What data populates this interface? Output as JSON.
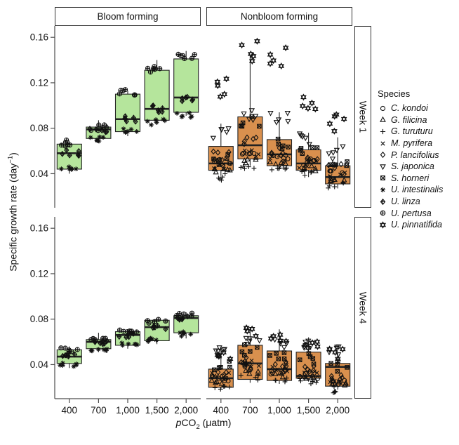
{
  "chart_data": {
    "type": "boxplot",
    "description": "Faceted boxplots with jittered species points: specific growth rate of macroalgae vs pCO2, bloom-forming vs nonbloom-forming, week 1 and week 4",
    "col_facets": [
      "Bloom  forming",
      "Nonbloom forming"
    ],
    "row_facets": [
      "Week 1",
      "Week 4"
    ],
    "x_axis": {
      "label_italic_prefix": "p",
      "label_main": "CO",
      "label_subscript": "2",
      "label_suffix": " (μatm)",
      "tick_labels": [
        "400",
        "700",
        "1,000",
        "1,500",
        "2,000"
      ],
      "values": [
        400,
        700,
        1000,
        1500,
        2000
      ]
    },
    "y_axis": {
      "label_main": "Specific growth rate (day",
      "label_superscript": "−1",
      "label_close": ")",
      "tick_labels": [
        "0.04",
        "0.08",
        "0.12",
        "0.16"
      ],
      "tick_values": [
        0.04,
        0.08,
        0.12,
        0.16
      ],
      "domain": [
        0.01,
        0.17
      ]
    },
    "colors": {
      "bloom_fill": "#b5e59c",
      "nonbloom_fill": "#d9904e",
      "box_stroke": "#222222",
      "point_stroke": "#111111",
      "axis_line": "#4d4d4d"
    },
    "legend": {
      "title": "Species",
      "items": [
        {
          "name": "C. kondoi",
          "symbol": "circle"
        },
        {
          "name": "G. filicina",
          "symbol": "triangle-up"
        },
        {
          "name": "G. turuturu",
          "symbol": "plus"
        },
        {
          "name": "M. pyrifera",
          "symbol": "x"
        },
        {
          "name": "P. lancifolius",
          "symbol": "diamond"
        },
        {
          "name": "S. japonica",
          "symbol": "triangle-down"
        },
        {
          "name": "S. horneri",
          "symbol": "square-x"
        },
        {
          "name": "U. intestinalis",
          "symbol": "asterisk"
        },
        {
          "name": "U. linza",
          "symbol": "diamond-plus"
        },
        {
          "name": "U. pertusa",
          "symbol": "circle-plus"
        },
        {
          "name": "U. pinnatifida",
          "symbol": "star6"
        }
      ]
    },
    "panels": [
      {
        "col_facet": "Bloom  forming",
        "row_facet": "Week 1",
        "col": 0,
        "row": 0,
        "fill": "#b5e59c",
        "boxes": [
          {
            "pco2": 400,
            "low": 0.04,
            "q1": 0.044,
            "median": 0.058,
            "q3": 0.066,
            "high": 0.069
          },
          {
            "pco2": 700,
            "low": 0.067,
            "q1": 0.071,
            "median": 0.079,
            "q3": 0.081,
            "high": 0.087
          },
          {
            "pco2": 1000,
            "low": 0.073,
            "q1": 0.077,
            "median": 0.088,
            "q3": 0.11,
            "high": 0.113
          },
          {
            "pco2": 1500,
            "low": 0.083,
            "q1": 0.087,
            "median": 0.097,
            "q3": 0.131,
            "high": 0.14
          },
          {
            "pco2": 2000,
            "low": 0.091,
            "q1": 0.094,
            "median": 0.107,
            "q3": 0.141,
            "high": 0.148
          }
        ],
        "species_points": [
          {
            "name": "U. intestinalis",
            "symbol": "asterisk",
            "means": [
              0.044,
              0.07,
              0.077,
              0.085,
              0.092
            ],
            "spread": 0.003,
            "reps": 6
          },
          {
            "name": "U. linza",
            "symbol": "diamond-plus",
            "means": [
              0.058,
              0.079,
              0.088,
              0.097,
              0.106
            ],
            "spread": 0.003,
            "reps": 6
          },
          {
            "name": "U. pertusa",
            "symbol": "circle-plus",
            "means": [
              0.067,
              0.081,
              0.112,
              0.132,
              0.143
            ],
            "spread": 0.003,
            "reps": 6
          }
        ]
      },
      {
        "col_facet": "Nonbloom forming",
        "row_facet": "Week 1",
        "col": 1,
        "row": 0,
        "fill": "#d9904e",
        "boxes": [
          {
            "pco2": 400,
            "low": 0.038,
            "q1": 0.043,
            "median": 0.049,
            "q3": 0.064,
            "high": 0.084
          },
          {
            "pco2": 700,
            "low": 0.047,
            "q1": 0.053,
            "median": 0.065,
            "q3": 0.09,
            "high": 0.144
          },
          {
            "pco2": 1000,
            "low": 0.043,
            "q1": 0.047,
            "median": 0.057,
            "q3": 0.07,
            "high": 0.094
          },
          {
            "pco2": 1500,
            "low": 0.037,
            "q1": 0.043,
            "median": 0.049,
            "q3": 0.061,
            "high": 0.076
          },
          {
            "pco2": 2000,
            "low": 0.027,
            "q1": 0.031,
            "median": 0.037,
            "q3": 0.047,
            "high": 0.072
          }
        ],
        "species_points": [
          {
            "name": "C. kondoi",
            "symbol": "circle",
            "means": [
              0.05,
              0.058,
              0.055,
              0.05,
              0.042
            ],
            "spread": 0.003,
            "reps": 5
          },
          {
            "name": "G. filicina",
            "symbol": "triangle-up",
            "means": [
              0.042,
              0.052,
              0.048,
              0.044,
              0.034
            ],
            "spread": 0.003,
            "reps": 5
          },
          {
            "name": "G. turuturu",
            "symbol": "plus",
            "means": [
              0.037,
              0.047,
              0.042,
              0.04,
              0.03
            ],
            "spread": 0.003,
            "reps": 5
          },
          {
            "name": "M. pyrifera",
            "symbol": "x",
            "means": [
              0.047,
              0.058,
              0.053,
              0.048,
              0.038
            ],
            "spread": 0.003,
            "reps": 5
          },
          {
            "name": "P. lancifolius",
            "symbol": "diamond",
            "means": [
              0.056,
              0.068,
              0.06,
              0.053,
              0.046
            ],
            "spread": 0.004,
            "reps": 5
          },
          {
            "name": "S. japonica",
            "symbol": "triangle-down",
            "means": [
              0.077,
              0.091,
              0.09,
              0.07,
              0.058
            ],
            "spread": 0.006,
            "reps": 5
          },
          {
            "name": "S. horneri",
            "symbol": "square-x",
            "means": [
              0.052,
              0.086,
              0.066,
              0.06,
              0.049
            ],
            "spread": 0.005,
            "reps": 5
          },
          {
            "name": "U. pinnatifida",
            "symbol": "star6",
            "means": [
              0.118,
              0.145,
              0.14,
              0.105,
              0.08
            ],
            "spread": 0.012,
            "reps": 5
          }
        ]
      },
      {
        "col_facet": "Bloom  forming",
        "row_facet": "Week 4",
        "col": 0,
        "row": 1,
        "fill": "#b5e59c",
        "boxes": [
          {
            "pco2": 400,
            "low": 0.037,
            "q1": 0.041,
            "median": 0.047,
            "q3": 0.053,
            "high": 0.056
          },
          {
            "pco2": 700,
            "low": 0.051,
            "q1": 0.054,
            "median": 0.06,
            "q3": 0.062,
            "high": 0.068
          },
          {
            "pco2": 1000,
            "low": 0.054,
            "q1": 0.057,
            "median": 0.066,
            "q3": 0.069,
            "high": 0.071
          },
          {
            "pco2": 1500,
            "low": 0.058,
            "q1": 0.061,
            "median": 0.073,
            "q3": 0.079,
            "high": 0.081
          },
          {
            "pco2": 2000,
            "low": 0.063,
            "q1": 0.068,
            "median": 0.081,
            "q3": 0.083,
            "high": 0.086
          }
        ],
        "species_points": [
          {
            "name": "U. intestinalis",
            "symbol": "asterisk",
            "means": [
              0.04,
              0.054,
              0.058,
              0.062,
              0.067
            ],
            "spread": 0.002,
            "reps": 6
          },
          {
            "name": "U. linza",
            "symbol": "diamond-plus",
            "means": [
              0.048,
              0.06,
              0.066,
              0.073,
              0.081
            ],
            "spread": 0.002,
            "reps": 6
          },
          {
            "name": "U. pertusa",
            "symbol": "circle-plus",
            "means": [
              0.053,
              0.062,
              0.069,
              0.078,
              0.084
            ],
            "spread": 0.002,
            "reps": 6
          }
        ]
      },
      {
        "col_facet": "Nonbloom forming",
        "row_facet": "Week 4",
        "col": 1,
        "row": 1,
        "fill": "#d9904e",
        "boxes": [
          {
            "pco2": 400,
            "low": 0.018,
            "q1": 0.02,
            "median": 0.028,
            "q3": 0.036,
            "high": 0.055
          },
          {
            "pco2": 700,
            "low": 0.024,
            "q1": 0.027,
            "median": 0.041,
            "q3": 0.057,
            "high": 0.072
          },
          {
            "pco2": 1000,
            "low": 0.023,
            "q1": 0.026,
            "median": 0.036,
            "q3": 0.052,
            "high": 0.071
          },
          {
            "pco2": 1500,
            "low": 0.025,
            "q1": 0.028,
            "median": 0.03,
            "q3": 0.051,
            "high": 0.064
          },
          {
            "pco2": 2000,
            "low": 0.018,
            "q1": 0.021,
            "median": 0.038,
            "q3": 0.041,
            "high": 0.05
          }
        ],
        "species_points": [
          {
            "name": "C. kondoi",
            "symbol": "circle",
            "means": [
              0.028,
              0.038,
              0.033,
              0.03,
              0.024
            ],
            "spread": 0.003,
            "reps": 5
          },
          {
            "name": "G. filicina",
            "symbol": "triangle-up",
            "means": [
              0.026,
              0.035,
              0.031,
              0.028,
              0.022
            ],
            "spread": 0.003,
            "reps": 5
          },
          {
            "name": "G. turuturu",
            "symbol": "plus",
            "means": [
              0.021,
              0.029,
              0.026,
              0.025,
              0.018
            ],
            "spread": 0.003,
            "reps": 5
          },
          {
            "name": "M. pyrifera",
            "symbol": "x",
            "means": [
              0.03,
              0.041,
              0.035,
              0.031,
              0.026
            ],
            "spread": 0.003,
            "reps": 5
          },
          {
            "name": "P. lancifolius",
            "symbol": "diamond",
            "means": [
              0.032,
              0.044,
              0.04,
              0.036,
              0.028
            ],
            "spread": 0.003,
            "reps": 5
          },
          {
            "name": "S. japonica",
            "symbol": "triangle-down",
            "means": [
              0.052,
              0.062,
              0.059,
              0.058,
              0.052
            ],
            "spread": 0.004,
            "reps": 5
          },
          {
            "name": "S. horneri",
            "symbol": "square-x",
            "means": [
              0.04,
              0.053,
              0.048,
              0.045,
              0.038
            ],
            "spread": 0.005,
            "reps": 5
          },
          {
            "name": "U. pinnatifida",
            "symbol": "star6",
            "means": [
              0.046,
              0.07,
              0.064,
              0.058,
              0.05
            ],
            "spread": 0.005,
            "reps": 5
          }
        ]
      }
    ]
  }
}
